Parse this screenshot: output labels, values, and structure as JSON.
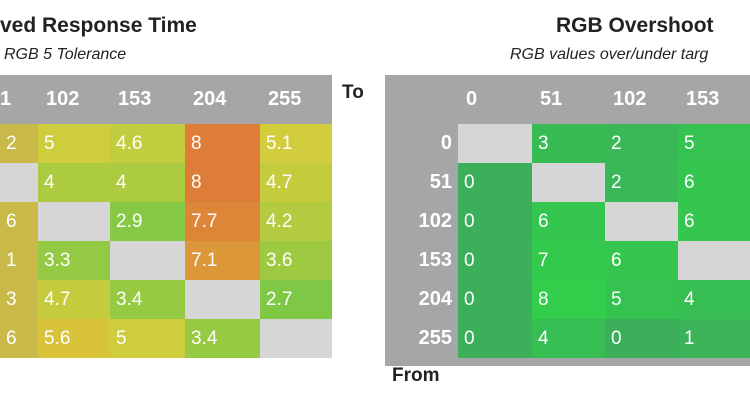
{
  "to_label": "To",
  "from_label": "From",
  "left": {
    "title": "ved Response Time",
    "subtitle": "RGB 5 Tolerance",
    "columns": [
      "1",
      "102",
      "153",
      "204",
      "255"
    ],
    "rows": [
      [
        "2",
        5,
        4.6,
        8,
        5.1
      ],
      [
        null,
        4,
        4,
        8,
        4.7
      ],
      [
        "6",
        null,
        2.9,
        7.7,
        4.2
      ],
      [
        "1",
        3.3,
        null,
        7.1,
        3.6
      ],
      [
        "3",
        4.7,
        3.4,
        null,
        2.7
      ],
      [
        "6",
        5.6,
        5,
        3.4,
        null
      ]
    ]
  },
  "right": {
    "title": "RGB Overshoot",
    "subtitle": "RGB values over/under targ",
    "columns": [
      "0",
      "51",
      "102",
      "153"
    ],
    "row_labels": [
      "0",
      "51",
      "102",
      "153",
      "204",
      "255"
    ],
    "rows": [
      [
        null,
        3,
        2,
        5
      ],
      [
        0,
        null,
        2,
        6
      ],
      [
        0,
        6,
        null,
        6
      ],
      [
        0,
        7,
        6,
        null
      ],
      [
        0,
        8,
        5,
        4
      ],
      [
        0,
        4,
        0,
        1
      ]
    ]
  }
}
